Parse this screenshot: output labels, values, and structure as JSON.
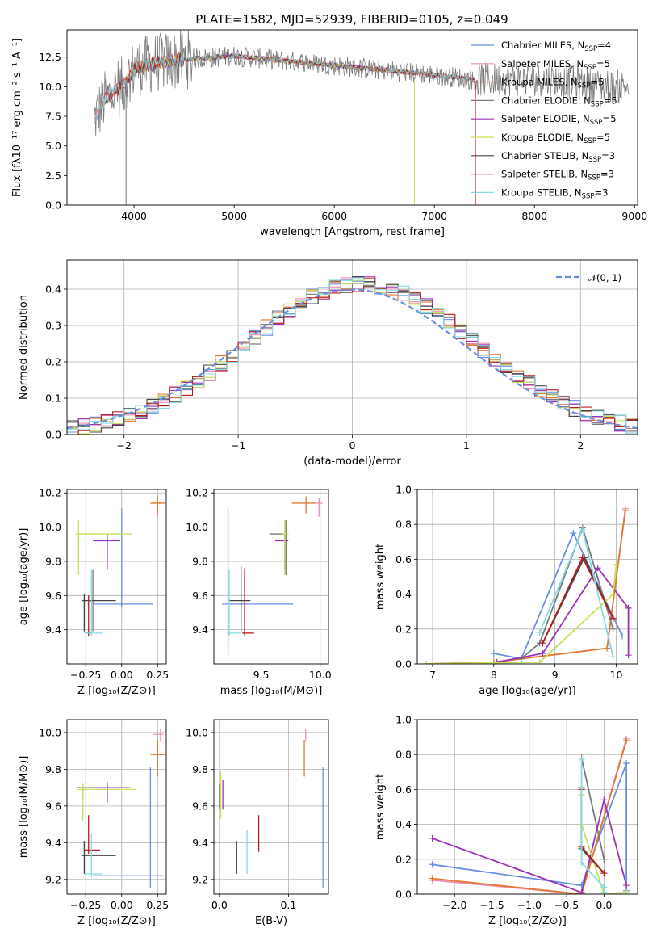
{
  "title": "PLATE=1582, MJD=52939, FIBERID=0105, z=0.049",
  "colors": {
    "Chabrier MILES": "#6b8fe0",
    "Salpeter MILES": "#ec8fb8",
    "Kroupa MILES": "#e07a32",
    "Chabrier ELODIE": "#7a7a7a",
    "Salpeter ELODIE": "#9b34b8",
    "Kroupa ELODIE": "#c6e05a",
    "Chabrier STELIB": "#444444",
    "Salpeter STELIB": "#b81c1c",
    "Kroupa STELIB": "#86dbe0",
    "normal_curve": "#6b8fe0",
    "grid": "#b0b0b0"
  },
  "chart_data": [
    {
      "id": "spectrum",
      "type": "line",
      "xlabel": "wavelength [Angstrom, rest frame]",
      "ylabel": "Flux [fλ10⁻¹⁷ erg cm⁻² s⁻¹ A⁻¹]",
      "xlim": [
        3330,
        9030
      ],
      "ylim": [
        0,
        14.8
      ],
      "xticks": [
        "4000",
        "5000",
        "6000",
        "7000",
        "8000",
        "9000"
      ],
      "yticks": [
        "0.0",
        "2.5",
        "5.0",
        "7.5",
        "10.0",
        "12.5"
      ],
      "legend_position": "right",
      "legend": [
        {
          "label": "Chabrier MILES, N",
          "n": "=4"
        },
        {
          "label": "Salpeter MILES, N",
          "n": "=5"
        },
        {
          "label": "Kroupa MILES, N",
          "n": "=5"
        },
        {
          "label": "Chabrier ELODIE, N",
          "n": "=5"
        },
        {
          "label": "Salpeter ELODIE, N",
          "n": "=5"
        },
        {
          "label": "Kroupa ELODIE, N",
          "n": "=5"
        },
        {
          "label": "Chabrier STELIB, N",
          "n": "=3"
        },
        {
          "label": "Salpeter STELIB, N",
          "n": "=3"
        },
        {
          "label": "Kroupa STELIB, N",
          "n": "=3"
        }
      ],
      "legend_subscript": "SSP",
      "data_x_range": [
        3600,
        8950
      ],
      "profile": {
        "x": [
          3600,
          3700,
          3800,
          3900,
          4000,
          4200,
          4500,
          5000,
          5500,
          6000,
          6500,
          7000,
          7400,
          7800,
          8200,
          8600,
          8950
        ],
        "y": [
          7.2,
          8.8,
          9.6,
          10.2,
          11.5,
          12.0,
          12.3,
          12.6,
          12.2,
          11.8,
          11.4,
          11.0,
          10.6,
          10.6,
          10.6,
          10.1,
          10.0
        ]
      },
      "data_noise": 1.6,
      "data_color": "#7a7a7a"
    },
    {
      "id": "residuals",
      "type": "step",
      "xlabel": "(data-model)/error",
      "ylabel": "Normed distribution",
      "xlim": [
        -2.5,
        2.5
      ],
      "ylim": [
        0,
        0.48
      ],
      "xticks": [
        "−2",
        "−1",
        "0",
        "1",
        "2"
      ],
      "yticks": [
        "0.0",
        "0.1",
        "0.2",
        "0.3",
        "0.4"
      ],
      "legend": "𝒩(0, 1)",
      "bins": {
        "start": -2.5,
        "width": 0.1,
        "count": 50
      }
    },
    {
      "id": "age-vs-Z",
      "type": "errorbar",
      "xlabel": "Z [log₁₀(Z/Z⊙)]",
      "ylabel": "age  [log₁₀(age/yr)]",
      "xlim": [
        -0.38,
        0.31
      ],
      "ylim": [
        9.2,
        10.22
      ],
      "xticks": [
        "−0.25",
        "0.00",
        "0.25"
      ],
      "yticks": [
        "9.4",
        "9.6",
        "9.8",
        "10.0",
        "10.2"
      ],
      "points": [
        {
          "model": "Chabrier MILES",
          "x": 0.0,
          "y": 9.55,
          "xerr": [
            0.2,
            0.22
          ],
          "yerr": [
            0.02,
            0.56
          ]
        },
        {
          "model": "Salpeter MILES",
          "x": 0.25,
          "y": 10.14,
          "xerr": [
            0.03,
            0.03
          ],
          "yerr": [
            0.08,
            0.03
          ]
        },
        {
          "model": "Kroupa MILES",
          "x": 0.25,
          "y": 10.14,
          "xerr": [
            0.05,
            0.05
          ],
          "yerr": [
            0.06,
            0.04
          ]
        },
        {
          "model": "Chabrier ELODIE",
          "x": -0.2,
          "y": 9.57,
          "xerr": [
            0.02,
            0.02
          ],
          "yerr": [
            0.18,
            0.18
          ]
        },
        {
          "model": "Salpeter ELODIE",
          "x": -0.1,
          "y": 9.92,
          "xerr": [
            0.1,
            0.09
          ],
          "yerr": [
            0.17,
            0.04
          ]
        },
        {
          "model": "Kroupa ELODIE",
          "x": -0.3,
          "y": 9.96,
          "xerr": [
            0.02,
            0.37
          ],
          "yerr": [
            0.24,
            0.08
          ]
        },
        {
          "model": "Chabrier STELIB",
          "x": -0.26,
          "y": 9.57,
          "xerr": [
            0.02,
            0.22
          ],
          "yerr": [
            0.18,
            0.04
          ]
        },
        {
          "model": "Salpeter STELIB",
          "x": -0.23,
          "y": 9.38,
          "xerr": [
            0.02,
            0.02
          ],
          "yerr": [
            0.02,
            0.22
          ]
        },
        {
          "model": "Kroupa STELIB",
          "x": -0.21,
          "y": 9.38,
          "xerr": [
            0.05,
            0.08
          ],
          "yerr": [
            0.02,
            0.37
          ]
        }
      ]
    },
    {
      "id": "age-vs-mass",
      "type": "errorbar",
      "xlabel": "mass [log₁₀(M/M⊙)]",
      "ylabel": "",
      "xlim": [
        9.1,
        10.07
      ],
      "ylim": [
        9.2,
        10.22
      ],
      "xticks": [
        "9.5",
        "10.0"
      ],
      "yticks": [
        "9.4",
        "9.6",
        "9.8",
        "10.0",
        "10.2"
      ],
      "points": [
        {
          "model": "Chabrier MILES",
          "x": 9.22,
          "y": 9.55,
          "xerr": [
            0.05,
            0.55
          ],
          "yerr": [
            0.3,
            0.56
          ]
        },
        {
          "model": "Salpeter MILES",
          "x": 9.99,
          "y": 10.14,
          "xerr": [
            0.02,
            0.03
          ],
          "yerr": [
            0.08,
            0.03
          ]
        },
        {
          "model": "Kroupa MILES",
          "x": 9.88,
          "y": 10.14,
          "xerr": [
            0.12,
            0.08
          ],
          "yerr": [
            0.06,
            0.04
          ]
        },
        {
          "model": "Chabrier ELODIE",
          "x": 9.71,
          "y": 9.96,
          "xerr": [
            0.14,
            0.02
          ],
          "yerr": [
            0.24,
            0.08
          ]
        },
        {
          "model": "Salpeter ELODIE",
          "x": 9.7,
          "y": 9.92,
          "xerr": [
            0.08,
            0.03
          ],
          "yerr": [
            0.17,
            0.04
          ]
        },
        {
          "model": "Kroupa ELODIE",
          "x": 9.7,
          "y": 9.96,
          "xerr": [
            0.02,
            0.03
          ],
          "yerr": [
            0.24,
            0.08
          ]
        },
        {
          "model": "Chabrier STELIB",
          "x": 9.33,
          "y": 9.57,
          "xerr": [
            0.1,
            0.08
          ],
          "yerr": [
            0.18,
            0.2
          ]
        },
        {
          "model": "Salpeter STELIB",
          "x": 9.36,
          "y": 9.38,
          "xerr": [
            0.02,
            0.08
          ],
          "yerr": [
            0.02,
            0.38
          ]
        },
        {
          "model": "Kroupa STELIB",
          "x": 9.23,
          "y": 9.38,
          "xerr": [
            0.02,
            0.1
          ],
          "yerr": [
            0.02,
            0.37
          ]
        }
      ]
    },
    {
      "id": "weight-vs-age",
      "type": "line",
      "xlabel": "age  [log₁₀(age/yr)]",
      "ylabel": "mass weight",
      "xlim": [
        6.75,
        10.35
      ],
      "ylim": [
        0,
        1.0
      ],
      "xticks": [
        "7",
        "8",
        "9",
        "10"
      ],
      "yticks": [
        "0.0",
        "0.2",
        "0.4",
        "0.6",
        "0.8",
        "1.0"
      ],
      "series": [
        {
          "model": "Chabrier MILES",
          "x": [
            8.0,
            8.45,
            9.3,
            10.1
          ],
          "y": [
            0.06,
            0.03,
            0.75,
            0.16
          ]
        },
        {
          "model": "Salpeter MILES",
          "x": [
            6.9,
            8.0,
            9.85,
            10.15
          ],
          "y": [
            0.0,
            0.01,
            0.09,
            0.89
          ]
        },
        {
          "model": "Kroupa MILES",
          "x": [
            6.9,
            8.0,
            9.85,
            10.15
          ],
          "y": [
            0.0,
            0.01,
            0.09,
            0.88
          ]
        },
        {
          "model": "Chabrier ELODIE",
          "x": [
            8.45,
            8.75,
            9.45,
            9.95
          ],
          "y": [
            0.03,
            0.12,
            0.78,
            0.2
          ]
        },
        {
          "model": "Salpeter ELODIE",
          "x": [
            8.05,
            8.8,
            9.7,
            10.2,
            10.2
          ],
          "y": [
            0.01,
            0.06,
            0.55,
            0.32,
            0.05
          ]
        },
        {
          "model": "Kroupa ELODIE",
          "x": [
            6.9,
            8.75,
            9.95,
            10.0
          ],
          "y": [
            0.0,
            0.01,
            0.4,
            0.57
          ]
        },
        {
          "model": "Chabrier STELIB",
          "x": [
            8.8,
            9.48,
            9.95
          ],
          "y": [
            0.12,
            0.61,
            0.26
          ]
        },
        {
          "model": "Salpeter STELIB",
          "x": [
            8.8,
            9.45,
            9.95
          ],
          "y": [
            0.12,
            0.61,
            0.26
          ]
        },
        {
          "model": "Kroupa STELIB",
          "x": [
            8.75,
            9.45,
            9.95
          ],
          "y": [
            0.18,
            0.77,
            0.04
          ]
        }
      ]
    },
    {
      "id": "mass-vs-Z",
      "type": "errorbar",
      "xlabel": "Z [log₁₀(Z/Z⊙)]",
      "ylabel": "mass [log₁₀(M/M⊙)]",
      "xlim": [
        -0.38,
        0.31
      ],
      "ylim": [
        9.12,
        10.07
      ],
      "xticks": [
        "−0.25",
        "0.00",
        "0.25"
      ],
      "yticks": [
        "9.2",
        "9.4",
        "9.6",
        "9.8",
        "10.0"
      ],
      "points": [
        {
          "model": "Chabrier MILES",
          "x": 0.2,
          "y": 9.22,
          "xerr": [
            0.4,
            0.09
          ],
          "yerr": [
            0.07,
            0.59
          ]
        },
        {
          "model": "Salpeter MILES",
          "x": 0.27,
          "y": 9.99,
          "xerr": [
            0.05,
            0.02
          ],
          "yerr": [
            0.04,
            0.03
          ]
        },
        {
          "model": "Kroupa MILES",
          "x": 0.25,
          "y": 9.88,
          "xerr": [
            0.05,
            0.05
          ],
          "yerr": [
            0.12,
            0.08
          ]
        },
        {
          "model": "Chabrier ELODIE",
          "x": -0.27,
          "y": 9.7,
          "xerr": [
            0.04,
            0.33
          ],
          "yerr": [
            0.07,
            0.02
          ]
        },
        {
          "model": "Salpeter ELODIE",
          "x": -0.1,
          "y": 9.7,
          "xerr": [
            0.1,
            0.1
          ],
          "yerr": [
            0.08,
            0.03
          ]
        },
        {
          "model": "Kroupa ELODIE",
          "x": -0.27,
          "y": 9.69,
          "xerr": [
            0.04,
            0.37
          ],
          "yerr": [
            0.17,
            0.03
          ]
        },
        {
          "model": "Chabrier STELIB",
          "x": -0.26,
          "y": 9.33,
          "xerr": [
            0.02,
            0.22
          ],
          "yerr": [
            0.1,
            0.08
          ]
        },
        {
          "model": "Salpeter STELIB",
          "x": -0.23,
          "y": 9.36,
          "xerr": [
            0.03,
            0.08
          ],
          "yerr": [
            0.02,
            0.19
          ]
        },
        {
          "model": "Kroupa STELIB",
          "x": -0.21,
          "y": 9.23,
          "xerr": [
            0.05,
            0.08
          ],
          "yerr": [
            0.02,
            0.22
          ]
        }
      ]
    },
    {
      "id": "mass-vs-EBV",
      "type": "errorbar",
      "xlabel": "E(B-V)",
      "ylabel": "",
      "xlim": [
        -0.008,
        0.158
      ],
      "ylim": [
        9.12,
        10.07
      ],
      "xticks": [
        "0.0",
        "0.1"
      ],
      "yticks": [
        "9.2",
        "9.4",
        "9.6",
        "9.8",
        "10.0"
      ],
      "points": [
        {
          "model": "Chabrier MILES",
          "x": 0.15,
          "y": 9.48,
          "xerr": [
            0,
            0
          ],
          "yerr": [
            0.33,
            0.33
          ]
        },
        {
          "model": "Salpeter MILES",
          "x": 0.125,
          "y": 9.99,
          "xerr": [
            0,
            0
          ],
          "yerr": [
            0.04,
            0.03
          ]
        },
        {
          "model": "Kroupa MILES",
          "x": 0.123,
          "y": 9.88,
          "xerr": [
            0,
            0
          ],
          "yerr": [
            0.12,
            0.08
          ]
        },
        {
          "model": "Chabrier ELODIE",
          "x": 0.0,
          "y": 9.65,
          "xerr": [
            0,
            0
          ],
          "yerr": [
            0.07,
            0.07
          ]
        },
        {
          "model": "Salpeter ELODIE",
          "x": 0.005,
          "y": 9.66,
          "xerr": [
            0,
            0
          ],
          "yerr": [
            0.08,
            0.08
          ]
        },
        {
          "model": "Kroupa ELODIE",
          "x": 0.002,
          "y": 9.66,
          "xerr": [
            0,
            0
          ],
          "yerr": [
            0.13,
            0.13
          ]
        },
        {
          "model": "Chabrier STELIB",
          "x": 0.025,
          "y": 9.33,
          "xerr": [
            0,
            0
          ],
          "yerr": [
            0.1,
            0.08
          ]
        },
        {
          "model": "Salpeter STELIB",
          "x": 0.057,
          "y": 9.45,
          "xerr": [
            0,
            0
          ],
          "yerr": [
            0.1,
            0.1
          ]
        },
        {
          "model": "Kroupa STELIB",
          "x": 0.04,
          "y": 9.35,
          "xerr": [
            0,
            0
          ],
          "yerr": [
            0.12,
            0.12
          ]
        }
      ]
    },
    {
      "id": "weight-vs-Z",
      "type": "line",
      "xlabel": "Z [log₁₀(Z/Z⊙)]",
      "ylabel": "mass weight",
      "xlim": [
        -2.5,
        0.45
      ],
      "ylim": [
        0,
        1.0
      ],
      "xticks": [
        "−2.0",
        "−1.5",
        "−1.0",
        "−0.5",
        "0.0"
      ],
      "yticks": [
        "0.0",
        "0.2",
        "0.4",
        "0.6",
        "0.8",
        "1.0"
      ],
      "series": [
        {
          "model": "Chabrier MILES",
          "x": [
            -2.3,
            -0.3,
            0.3,
            0.3
          ],
          "y": [
            0.17,
            0.05,
            0.75,
            0.02
          ]
        },
        {
          "model": "Salpeter MILES",
          "x": [
            -2.3,
            -0.3,
            0.3
          ],
          "y": [
            0.08,
            0.0,
            0.89
          ]
        },
        {
          "model": "Kroupa MILES",
          "x": [
            -2.3,
            -0.3,
            0.3
          ],
          "y": [
            0.09,
            0.0,
            0.88
          ]
        },
        {
          "model": "Chabrier ELODIE",
          "x": [
            -0.3,
            0.0
          ],
          "y": [
            0.78,
            0.2
          ]
        },
        {
          "model": "Salpeter ELODIE",
          "x": [
            -2.3,
            -0.3,
            0.0,
            0.3
          ],
          "y": [
            0.32,
            0.01,
            0.54,
            0.05
          ]
        },
        {
          "model": "Kroupa ELODIE",
          "x": [
            -0.3,
            -0.3,
            0.0,
            0.3
          ],
          "y": [
            0.57,
            0.4,
            0.0,
            0.01
          ]
        },
        {
          "model": "Chabrier STELIB",
          "x": [
            -0.3,
            -0.3,
            0.0
          ],
          "y": [
            0.61,
            0.26,
            0.12
          ]
        },
        {
          "model": "Salpeter STELIB",
          "x": [
            -0.3,
            -0.3,
            0.0
          ],
          "y": [
            0.6,
            0.27,
            0.12
          ]
        },
        {
          "model": "Kroupa STELIB",
          "x": [
            -0.3,
            -0.3,
            0.0,
            0.0
          ],
          "y": [
            0.77,
            0.18,
            0.04,
            0.01
          ]
        }
      ]
    }
  ]
}
